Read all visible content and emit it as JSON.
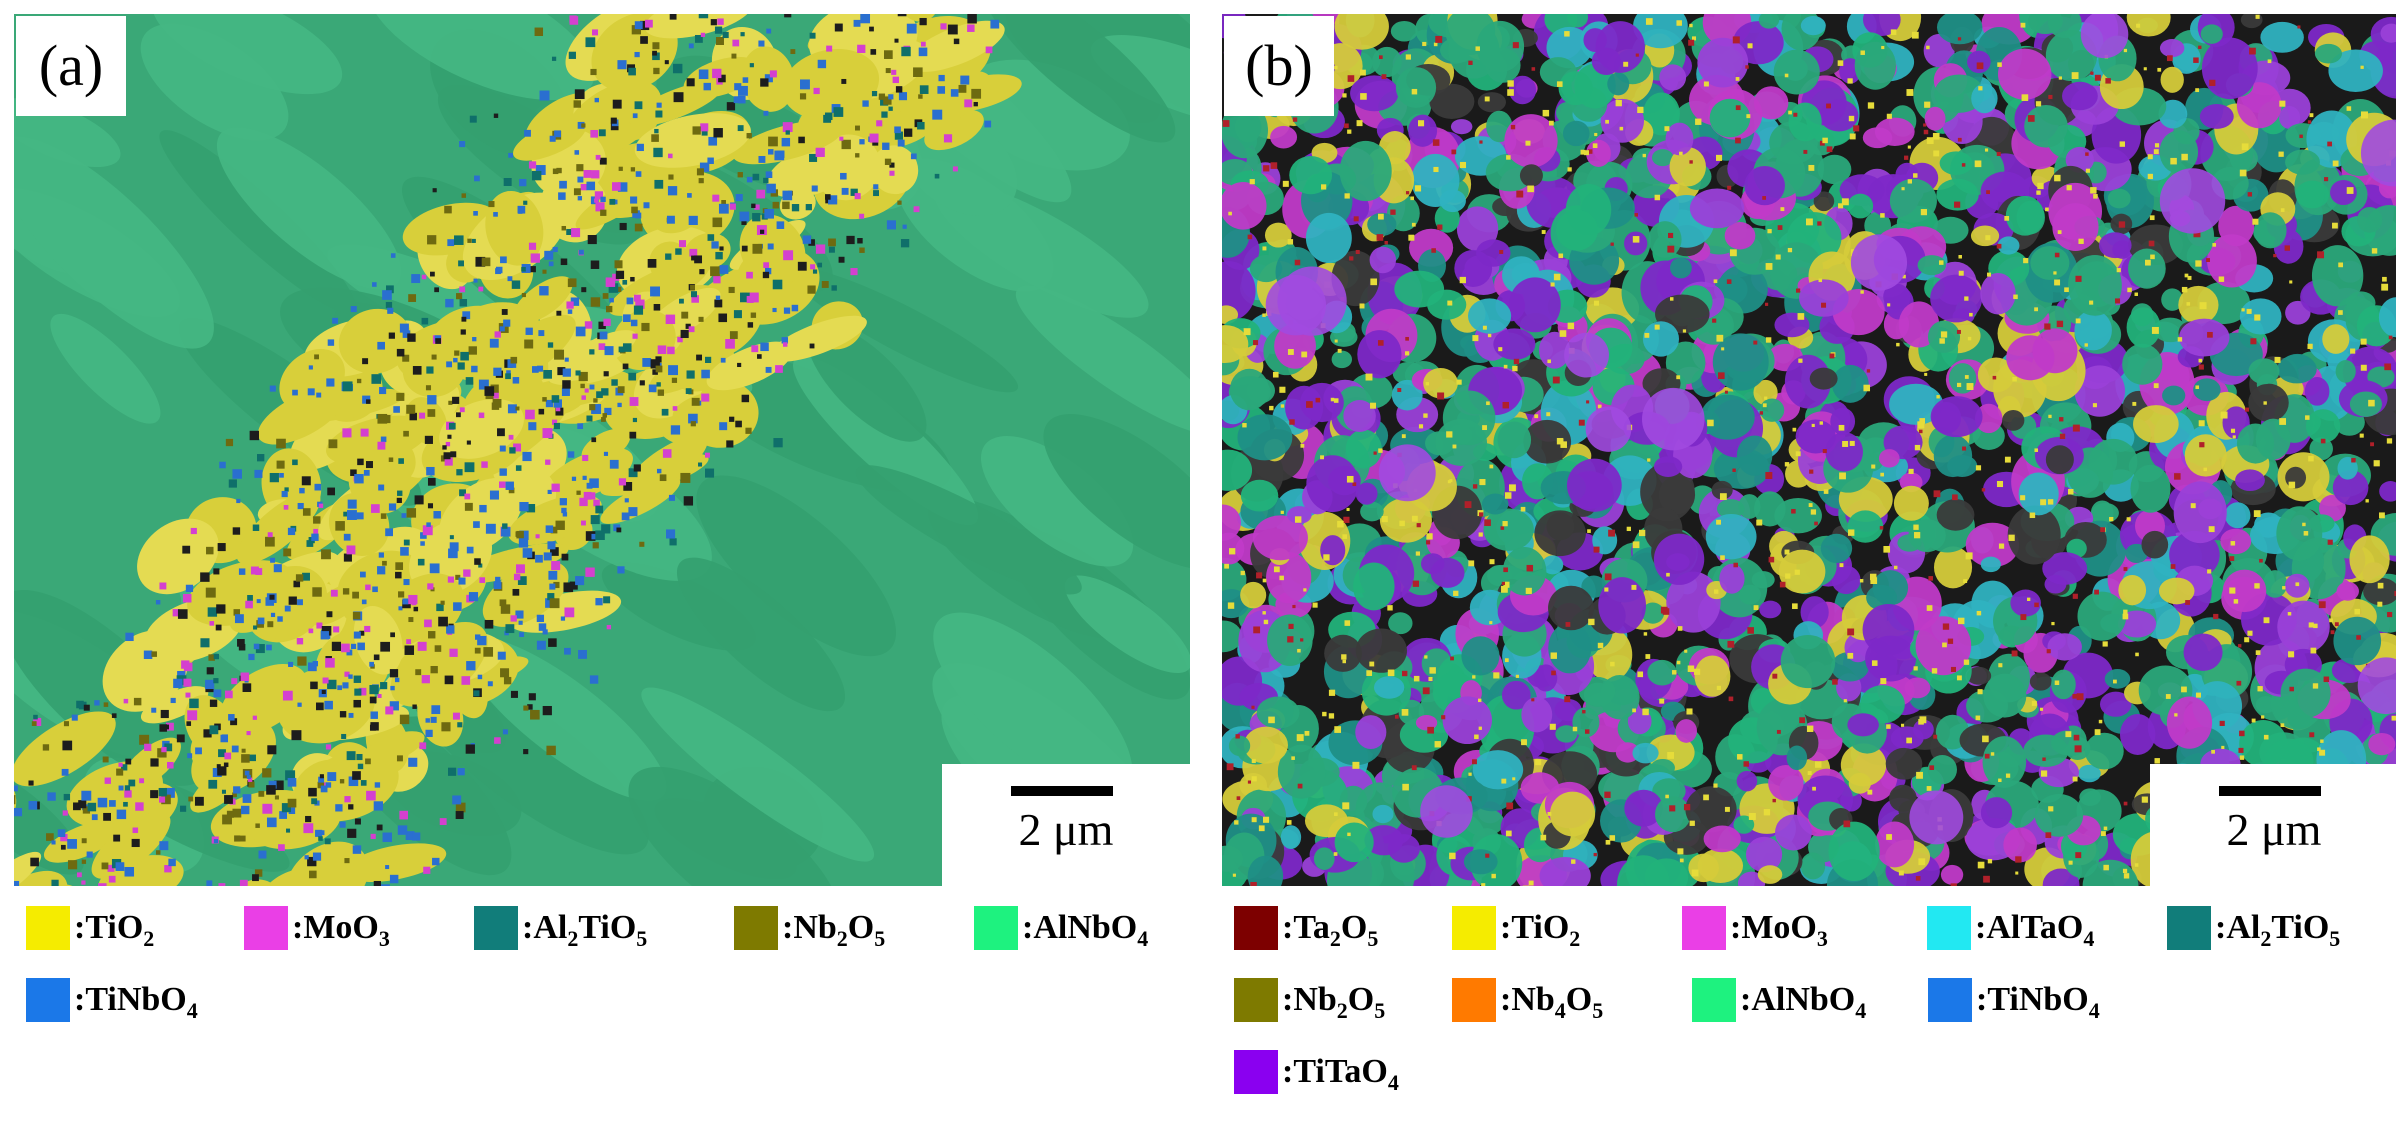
{
  "panels": [
    {
      "label": "(a)",
      "scale_bar": "2 μm",
      "legend": [
        {
          "label": "TiO",
          "sub": "2",
          "color": "#f5ec00"
        },
        {
          "label": "MoO",
          "sub": "3",
          "color": "#ea3fe6"
        },
        {
          "label": "Al",
          "sub": "2",
          "tail": "TiO",
          "sub2": "5",
          "color": "#117d7a"
        },
        {
          "label": "Nb",
          "sub": "2",
          "tail": "O",
          "sub2": "5",
          "color": "#7e7a00"
        },
        {
          "label": "AlNbO",
          "sub": "4",
          "color": "#1ef27f"
        },
        {
          "label": "TiNbO",
          "sub": "4",
          "color": "#1b78e8"
        }
      ]
    },
    {
      "label": "(b)",
      "scale_bar": "2 μm",
      "legend": [
        {
          "label": "Ta",
          "sub": "2",
          "tail": "O",
          "sub2": "5",
          "color": "#7d0000"
        },
        {
          "label": "TiO",
          "sub": "2",
          "color": "#f5ec00"
        },
        {
          "label": "MoO",
          "sub": "3",
          "color": "#ea3fe6"
        },
        {
          "label": "AlTaO",
          "sub": "4",
          "color": "#22e8f2"
        },
        {
          "label": "Al",
          "sub": "2",
          "tail": "TiO",
          "sub2": "5",
          "color": "#117d7a"
        },
        {
          "label": "Nb",
          "sub": "2",
          "tail": "O",
          "sub2": "5",
          "color": "#7e7a00"
        },
        {
          "label": "Nb",
          "sub": "4",
          "tail": "O",
          "sub2": "5",
          "color": "#ff7a00"
        },
        {
          "label": "AlNbO",
          "sub": "4",
          "color": "#1ef27f"
        },
        {
          "label": "TiNbO",
          "sub": "4",
          "color": "#1b78e8"
        },
        {
          "label": "TiTaO",
          "sub": "4",
          "color": "#8a00f0"
        }
      ]
    }
  ]
}
